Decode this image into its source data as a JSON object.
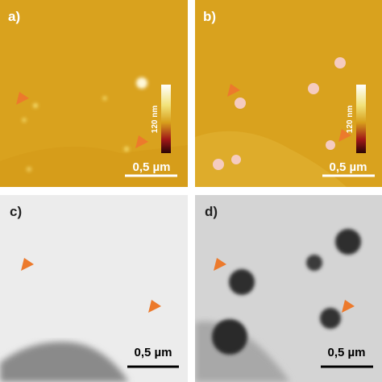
{
  "panels": [
    {
      "label": "a)",
      "scale_bar": "0,5 µm",
      "colorbar": "120 nm"
    },
    {
      "label": "b)",
      "scale_bar": "0,5 µm",
      "colorbar": "120 nm"
    },
    {
      "label": "c)",
      "scale_bar": "0,5 µm"
    },
    {
      "label": "d)",
      "scale_bar": "0,5 µm"
    }
  ]
}
